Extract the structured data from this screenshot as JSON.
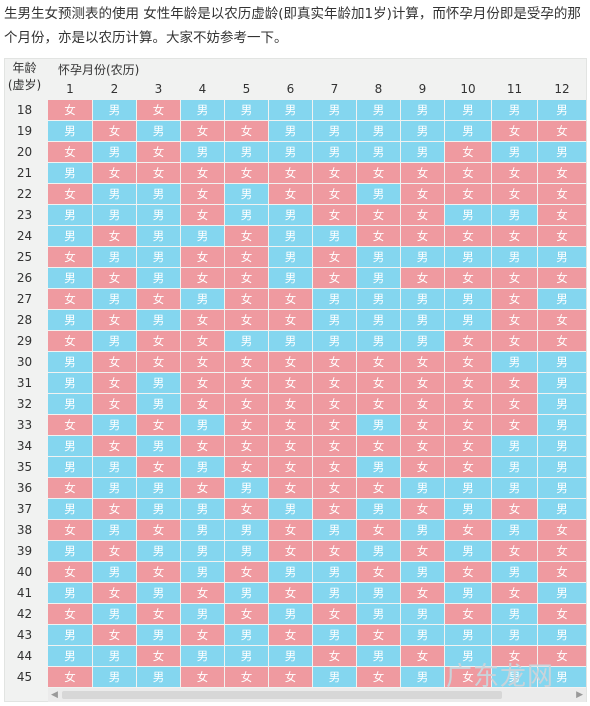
{
  "intro": "生男生女预测表的使用 女性年龄是以农历虚龄(即真实年龄加1岁)计算，而怀孕月份即是受孕的那个月份，亦是以农历计算。大家不妨参考一下。",
  "table": {
    "age_header_line1": "年龄",
    "age_header_line2": "(虚岁)",
    "month_header": "怀孕月份(农历)",
    "months": [
      "1",
      "2",
      "3",
      "4",
      "5",
      "6",
      "7",
      "8",
      "9",
      "10",
      "11",
      "12"
    ],
    "rows": [
      {
        "age": "18",
        "cells": [
          "女",
          "男",
          "女",
          "男",
          "男",
          "男",
          "男",
          "男",
          "男",
          "男",
          "男",
          "男"
        ]
      },
      {
        "age": "19",
        "cells": [
          "男",
          "女",
          "男",
          "女",
          "女",
          "男",
          "男",
          "男",
          "男",
          "男",
          "女",
          "女"
        ]
      },
      {
        "age": "20",
        "cells": [
          "女",
          "男",
          "女",
          "男",
          "男",
          "男",
          "男",
          "男",
          "男",
          "女",
          "男",
          "男"
        ]
      },
      {
        "age": "21",
        "cells": [
          "男",
          "女",
          "女",
          "女",
          "女",
          "女",
          "女",
          "女",
          "女",
          "女",
          "女",
          "女"
        ]
      },
      {
        "age": "22",
        "cells": [
          "女",
          "男",
          "男",
          "女",
          "男",
          "女",
          "女",
          "男",
          "女",
          "女",
          "女",
          "女"
        ]
      },
      {
        "age": "23",
        "cells": [
          "男",
          "男",
          "男",
          "女",
          "男",
          "男",
          "女",
          "女",
          "女",
          "男",
          "男",
          "女"
        ]
      },
      {
        "age": "24",
        "cells": [
          "男",
          "女",
          "男",
          "男",
          "女",
          "男",
          "男",
          "女",
          "女",
          "女",
          "女",
          "女"
        ]
      },
      {
        "age": "25",
        "cells": [
          "女",
          "男",
          "男",
          "女",
          "女",
          "男",
          "女",
          "男",
          "男",
          "男",
          "男",
          "男"
        ]
      },
      {
        "age": "26",
        "cells": [
          "男",
          "女",
          "男",
          "女",
          "女",
          "男",
          "女",
          "男",
          "女",
          "女",
          "女",
          "女"
        ]
      },
      {
        "age": "27",
        "cells": [
          "女",
          "男",
          "女",
          "男",
          "女",
          "女",
          "男",
          "男",
          "男",
          "男",
          "女",
          "男"
        ]
      },
      {
        "age": "28",
        "cells": [
          "男",
          "女",
          "男",
          "女",
          "女",
          "女",
          "男",
          "男",
          "男",
          "男",
          "女",
          "女"
        ]
      },
      {
        "age": "29",
        "cells": [
          "女",
          "男",
          "女",
          "女",
          "男",
          "男",
          "男",
          "男",
          "男",
          "女",
          "女",
          "女"
        ]
      },
      {
        "age": "30",
        "cells": [
          "男",
          "女",
          "女",
          "女",
          "女",
          "女",
          "女",
          "女",
          "女",
          "女",
          "男",
          "男"
        ]
      },
      {
        "age": "31",
        "cells": [
          "男",
          "女",
          "男",
          "女",
          "女",
          "女",
          "女",
          "女",
          "女",
          "女",
          "女",
          "男"
        ]
      },
      {
        "age": "32",
        "cells": [
          "男",
          "女",
          "男",
          "女",
          "女",
          "女",
          "女",
          "女",
          "女",
          "女",
          "女",
          "男"
        ]
      },
      {
        "age": "33",
        "cells": [
          "女",
          "男",
          "女",
          "男",
          "女",
          "女",
          "女",
          "男",
          "女",
          "女",
          "女",
          "男"
        ]
      },
      {
        "age": "34",
        "cells": [
          "男",
          "女",
          "男",
          "女",
          "女",
          "女",
          "女",
          "女",
          "女",
          "女",
          "男",
          "男"
        ]
      },
      {
        "age": "35",
        "cells": [
          "男",
          "男",
          "女",
          "男",
          "女",
          "女",
          "女",
          "男",
          "女",
          "女",
          "男",
          "男"
        ]
      },
      {
        "age": "36",
        "cells": [
          "女",
          "男",
          "男",
          "女",
          "男",
          "女",
          "女",
          "女",
          "男",
          "男",
          "男",
          "男"
        ]
      },
      {
        "age": "37",
        "cells": [
          "男",
          "女",
          "男",
          "男",
          "女",
          "男",
          "女",
          "男",
          "女",
          "男",
          "女",
          "男"
        ]
      },
      {
        "age": "38",
        "cells": [
          "女",
          "男",
          "女",
          "男",
          "男",
          "女",
          "男",
          "女",
          "男",
          "女",
          "男",
          "女"
        ]
      },
      {
        "age": "39",
        "cells": [
          "男",
          "女",
          "男",
          "男",
          "男",
          "女",
          "女",
          "男",
          "女",
          "男",
          "女",
          "女"
        ]
      },
      {
        "age": "40",
        "cells": [
          "女",
          "男",
          "女",
          "男",
          "女",
          "男",
          "男",
          "女",
          "男",
          "女",
          "男",
          "女"
        ]
      },
      {
        "age": "41",
        "cells": [
          "男",
          "女",
          "男",
          "女",
          "男",
          "女",
          "男",
          "男",
          "女",
          "男",
          "女",
          "男"
        ]
      },
      {
        "age": "42",
        "cells": [
          "女",
          "男",
          "女",
          "男",
          "女",
          "男",
          "女",
          "男",
          "男",
          "女",
          "男",
          "女"
        ]
      },
      {
        "age": "43",
        "cells": [
          "男",
          "女",
          "男",
          "女",
          "男",
          "女",
          "男",
          "女",
          "男",
          "男",
          "男",
          "男"
        ]
      },
      {
        "age": "44",
        "cells": [
          "男",
          "男",
          "女",
          "男",
          "男",
          "男",
          "女",
          "男",
          "女",
          "男",
          "女",
          "女"
        ]
      },
      {
        "age": "45",
        "cells": [
          "女",
          "男",
          "男",
          "女",
          "女",
          "女",
          "男",
          "女",
          "男",
          "女",
          "男",
          "男"
        ]
      }
    ]
  },
  "watermark": "广东龙网",
  "colors": {
    "girl": "#ef9aa0",
    "boy": "#84d6ef"
  }
}
